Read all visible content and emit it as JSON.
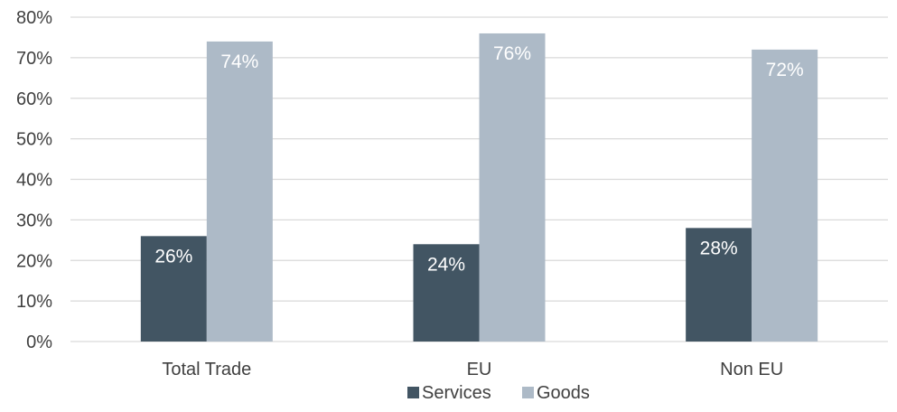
{
  "chart_data": {
    "type": "bar",
    "categories": [
      "Total Trade",
      "EU",
      "Non EU"
    ],
    "series": [
      {
        "name": "Services",
        "values": [
          26,
          24,
          28
        ],
        "labels": [
          "26%",
          "24%",
          "28%"
        ],
        "color": "#425563"
      },
      {
        "name": "Goods",
        "values": [
          74,
          76,
          72
        ],
        "labels": [
          "74%",
          "76%",
          "72%"
        ],
        "color": "#adbac7"
      }
    ],
    "y_ticks": [
      "0%",
      "10%",
      "20%",
      "30%",
      "40%",
      "50%",
      "60%",
      "70%",
      "80%"
    ],
    "ylim": [
      0,
      80
    ],
    "grid": true,
    "legend_position": "bottom",
    "title": "",
    "xlabel": "",
    "ylabel": ""
  }
}
